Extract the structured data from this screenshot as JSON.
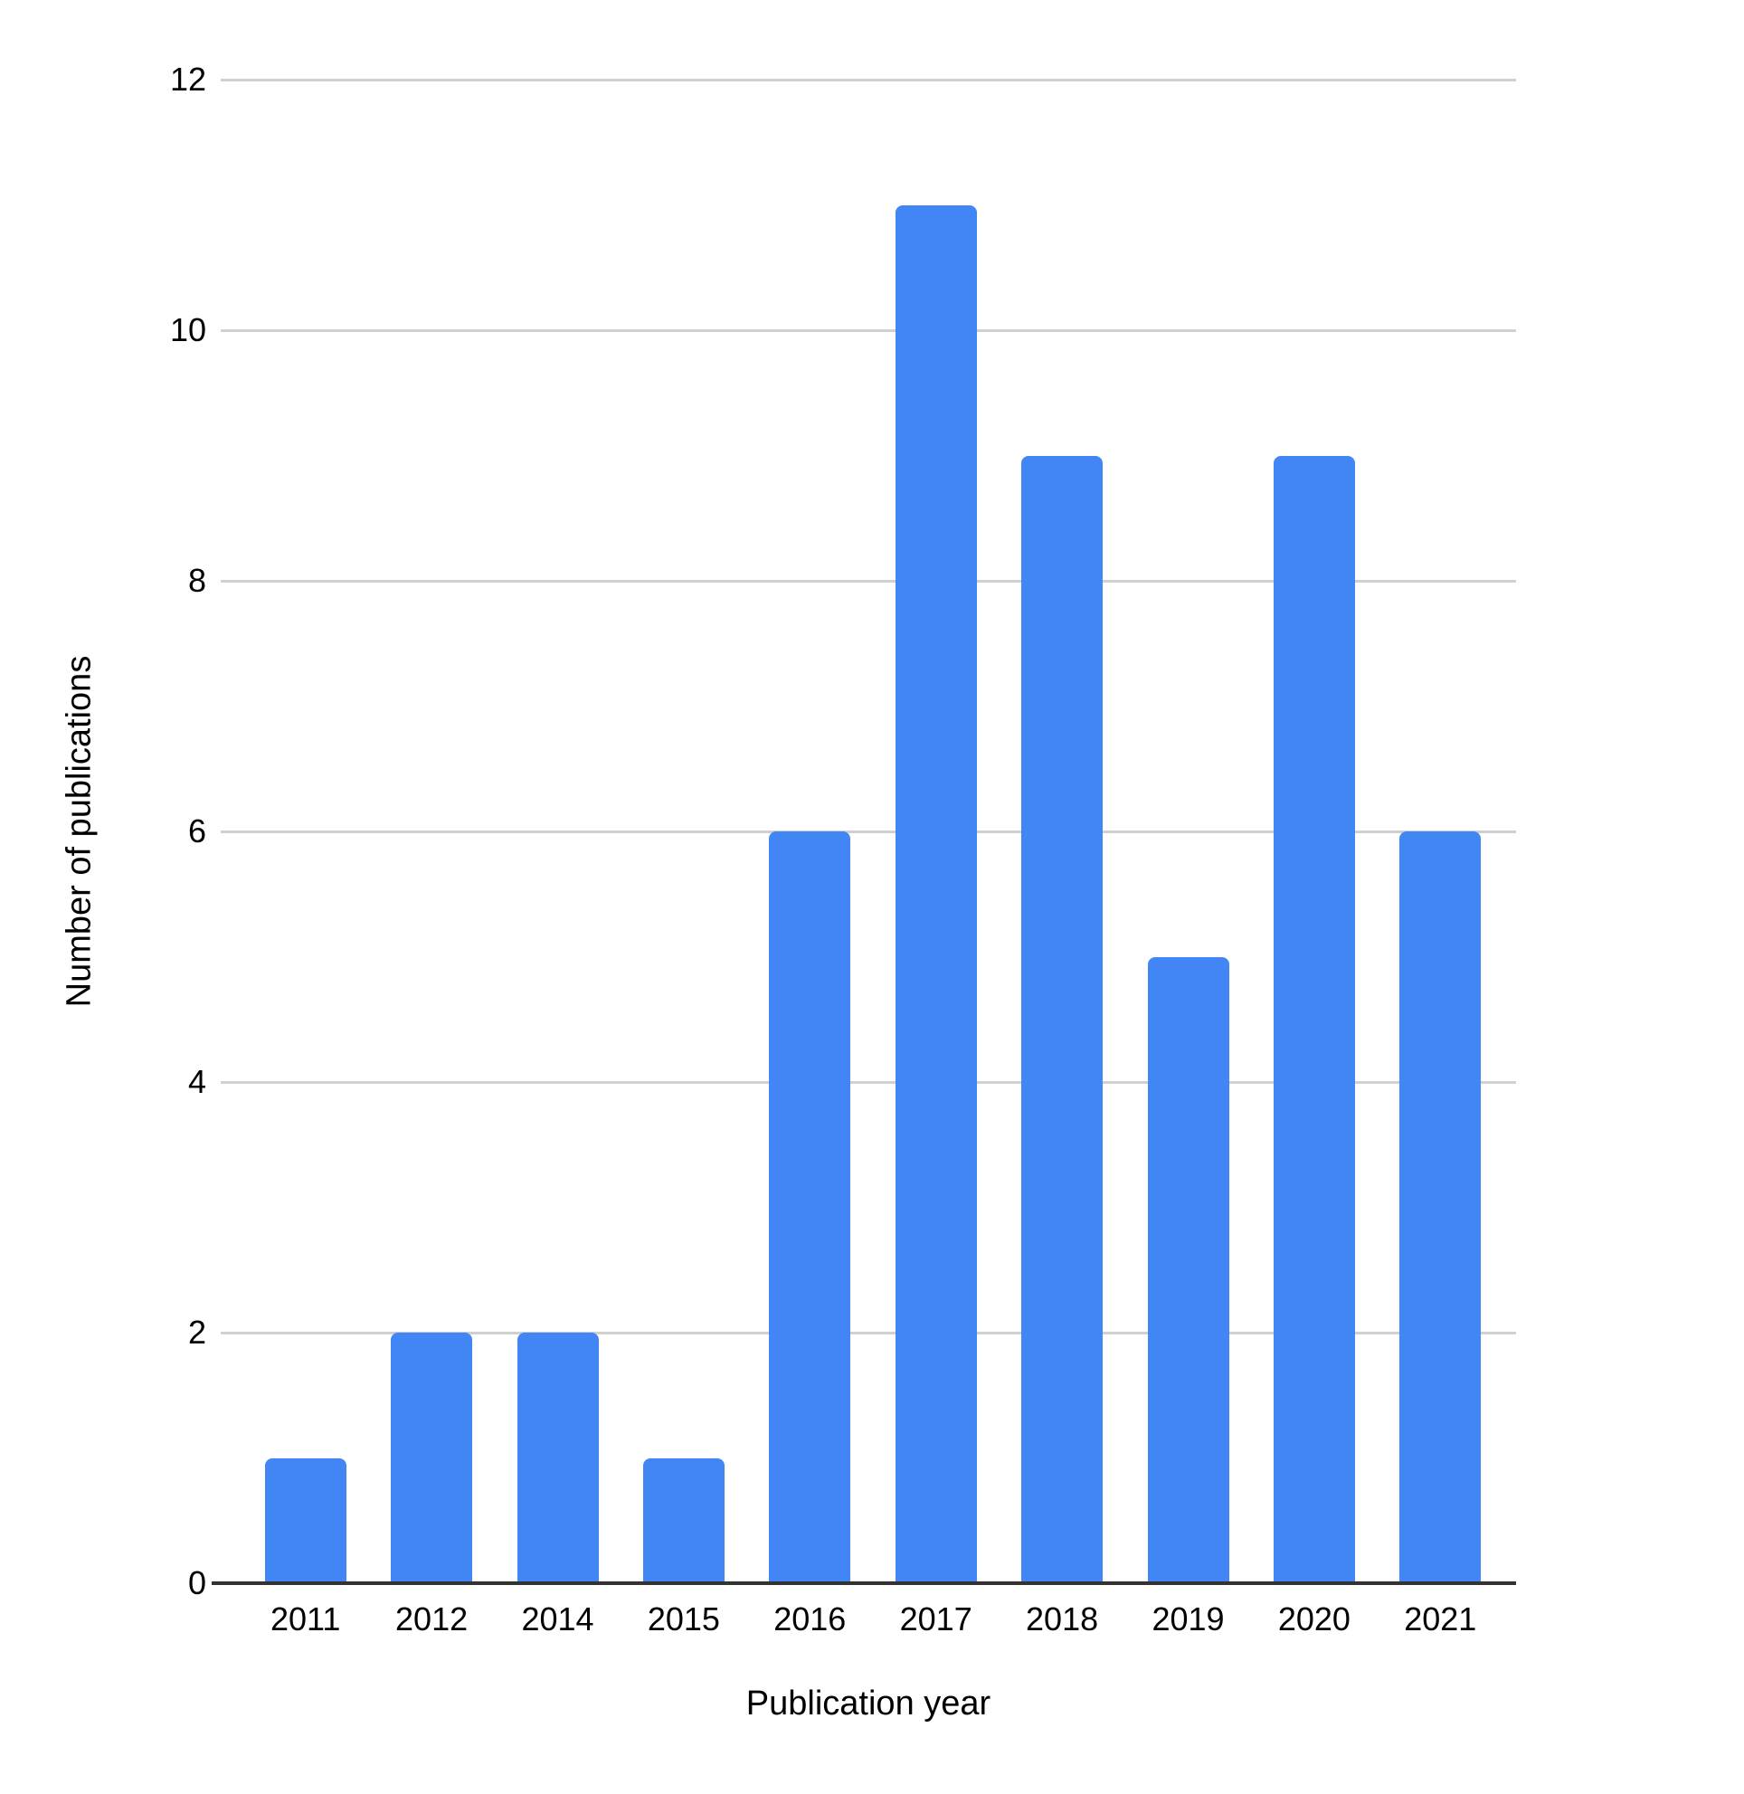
{
  "chart_data": {
    "type": "bar",
    "title": "",
    "categories": [
      "2011",
      "2012",
      "2014",
      "2015",
      "2016",
      "2017",
      "2018",
      "2019",
      "2020",
      "2021"
    ],
    "values": [
      1,
      2,
      2,
      1,
      6,
      11,
      9,
      5,
      9,
      6
    ],
    "xlabel": "Publication year",
    "ylabel": "Number of publications",
    "ylim": [
      0,
      12
    ],
    "yticks": [
      0,
      2,
      4,
      6,
      8,
      10,
      12
    ],
    "grid": true,
    "legend_position": "none",
    "bar_color": "#4285F4",
    "gridline_color": "#D0D0D0",
    "axis_line_color": "#333333",
    "label_color": "#000000",
    "background_color": "#FFFFFF"
  }
}
